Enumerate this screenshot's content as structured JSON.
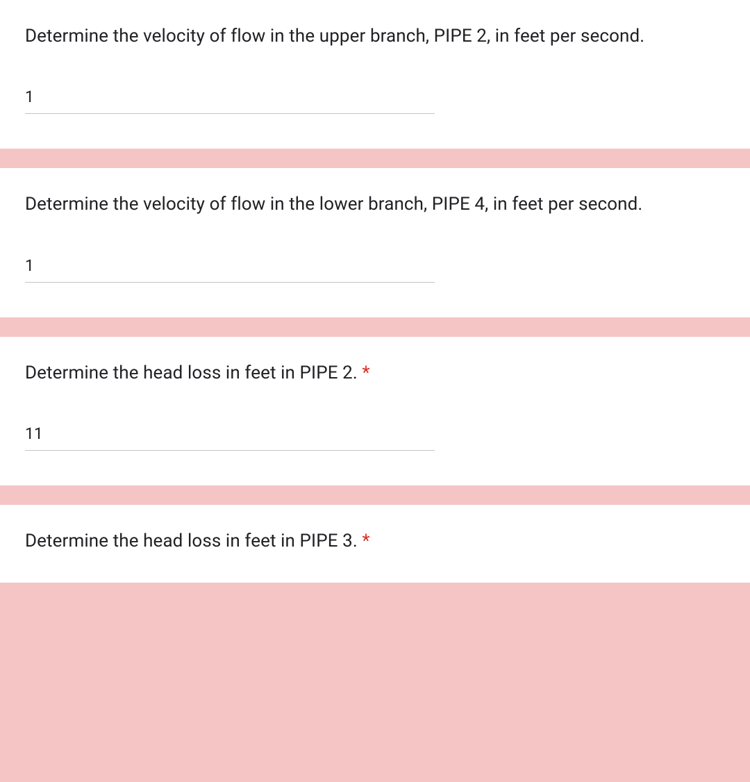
{
  "form": {
    "divider_color": "#f5c5c5",
    "card_background": "#ffffff",
    "required_color": "#d93025",
    "text_color": "#202124",
    "input_underline_color": "#c4c4c4",
    "question_fontsize": 26,
    "input_fontsize": 23,
    "questions": [
      {
        "text": "Determine the velocity of flow in the upper branch, PIPE 2, in feet per second.",
        "required": false,
        "answer": "1"
      },
      {
        "text": "Determine the velocity of flow in the lower branch, PIPE 4, in feet per second.",
        "required": false,
        "answer": "1"
      },
      {
        "text": "Determine the head loss in feet in PIPE 2. ",
        "required": true,
        "answer": "11"
      },
      {
        "text": "Determine the head loss in feet in PIPE 3. ",
        "required": true,
        "answer": ""
      }
    ]
  }
}
